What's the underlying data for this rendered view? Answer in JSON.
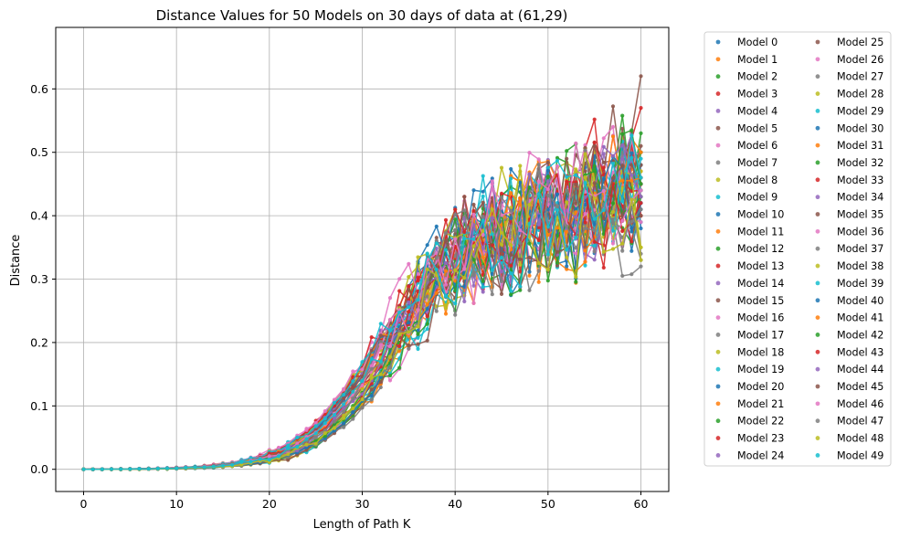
{
  "chart_data": {
    "type": "line",
    "title": "Distance Values for 50 Models on 30 days of data at (61,29)",
    "xlabel": "Length of Path K",
    "ylabel": "Distance",
    "xlim": [
      -3,
      63
    ],
    "ylim": [
      -0.035,
      0.697
    ],
    "xticks": [
      0,
      10,
      20,
      30,
      40,
      50,
      60
    ],
    "yticks": [
      0.0,
      0.1,
      0.2,
      0.3,
      0.4,
      0.5,
      0.6
    ],
    "xtick_labels": [
      "0",
      "10",
      "20",
      "30",
      "40",
      "50",
      "60"
    ],
    "ytick_labels": [
      "0.0",
      "0.1",
      "0.2",
      "0.3",
      "0.4",
      "0.5",
      "0.6"
    ],
    "grid": true,
    "legend": {
      "placement": "outside-right",
      "columns": 2
    },
    "x_range": [
      0,
      60
    ],
    "colors": [
      "#1f77b4",
      "#ff7f0e",
      "#2ca02c",
      "#d62728",
      "#9467bd",
      "#8c564b",
      "#e377c2",
      "#7f7f7f",
      "#bcbd22",
      "#17becf"
    ],
    "series_final": [
      0.48,
      0.5,
      0.53,
      0.57,
      0.46,
      0.62,
      0.5,
      0.45,
      0.44,
      0.39,
      0.42,
      0.44,
      0.43,
      0.4,
      0.45,
      0.48,
      0.46,
      0.32,
      0.35,
      0.46,
      0.38,
      0.47,
      0.5,
      0.45,
      0.43,
      0.51,
      0.43,
      0.33,
      0.47,
      0.49,
      0.42,
      0.5,
      0.43,
      0.44,
      0.46,
      0.45,
      0.39,
      0.34,
      0.33,
      0.44,
      0.41,
      0.46,
      0.45,
      0.42,
      0.43,
      0.4,
      0.44,
      0.41,
      0.35,
      0.46
    ],
    "series": [
      {
        "name": "Model 0"
      },
      {
        "name": "Model 1"
      },
      {
        "name": "Model 2"
      },
      {
        "name": "Model 3"
      },
      {
        "name": "Model 4"
      },
      {
        "name": "Model 5"
      },
      {
        "name": "Model 6"
      },
      {
        "name": "Model 7"
      },
      {
        "name": "Model 8"
      },
      {
        "name": "Model 9"
      },
      {
        "name": "Model 10"
      },
      {
        "name": "Model 11"
      },
      {
        "name": "Model 12"
      },
      {
        "name": "Model 13"
      },
      {
        "name": "Model 14"
      },
      {
        "name": "Model 15"
      },
      {
        "name": "Model 16"
      },
      {
        "name": "Model 17"
      },
      {
        "name": "Model 18"
      },
      {
        "name": "Model 19"
      },
      {
        "name": "Model 20"
      },
      {
        "name": "Model 21"
      },
      {
        "name": "Model 22"
      },
      {
        "name": "Model 23"
      },
      {
        "name": "Model 24"
      },
      {
        "name": "Model 25"
      },
      {
        "name": "Model 26"
      },
      {
        "name": "Model 27"
      },
      {
        "name": "Model 28"
      },
      {
        "name": "Model 29"
      },
      {
        "name": "Model 30"
      },
      {
        "name": "Model 31"
      },
      {
        "name": "Model 32"
      },
      {
        "name": "Model 33"
      },
      {
        "name": "Model 34"
      },
      {
        "name": "Model 35"
      },
      {
        "name": "Model 36"
      },
      {
        "name": "Model 37"
      },
      {
        "name": "Model 38"
      },
      {
        "name": "Model 39"
      },
      {
        "name": "Model 40"
      },
      {
        "name": "Model 41"
      },
      {
        "name": "Model 42"
      },
      {
        "name": "Model 43"
      },
      {
        "name": "Model 44"
      },
      {
        "name": "Model 45"
      },
      {
        "name": "Model 46"
      },
      {
        "name": "Model 47"
      },
      {
        "name": "Model 48"
      },
      {
        "name": "Model 49"
      }
    ]
  }
}
